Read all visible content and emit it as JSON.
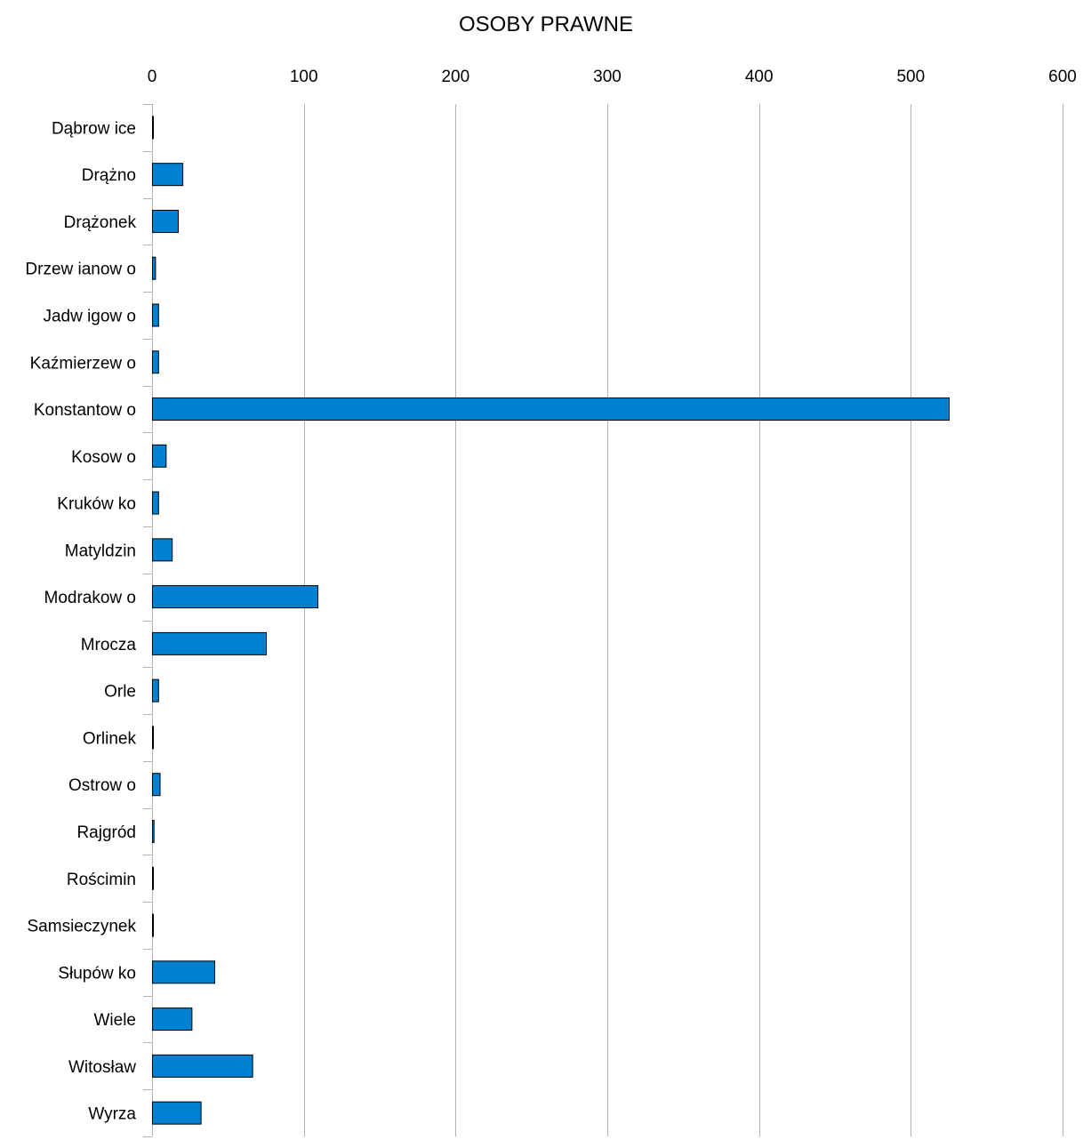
{
  "chart_data": {
    "type": "bar",
    "orientation": "horizontal",
    "title": "OSOBY PRAWNE",
    "xlabel": "",
    "ylabel": "",
    "xlim": [
      0,
      600
    ],
    "x_ticks": [
      0,
      100,
      200,
      300,
      400,
      500,
      600
    ],
    "x_axis_position": "top",
    "grid": true,
    "legend": "none",
    "categories": [
      "Dąbrow ice",
      "Drążno",
      "Drążonek",
      "Drzew ianow o",
      "Jadw igow o",
      "Kaźmierzew o",
      "Konstantow o",
      "Kosow o",
      "Kruków ko",
      "Matyldzin",
      "Modrakow o",
      "Mrocza",
      "Orle",
      "Orlinek",
      "Ostrow o",
      "Rajgród",
      "Rościmin",
      "Samsieczynek",
      "Słupów ko",
      "Wiele",
      "Witosław",
      "Wyrza"
    ],
    "series": [
      {
        "values": [
          0,
          20,
          17,
          2,
          4,
          4,
          525,
          9,
          4,
          13,
          109,
          75,
          4,
          0,
          5,
          1,
          0,
          0,
          41,
          26,
          66,
          32
        ]
      }
    ],
    "colors": {
      "bar_fill": "#0080d0",
      "bar_stroke": "#000000",
      "grid": "#b3b3b3",
      "axis": "#b3b3b3"
    }
  }
}
